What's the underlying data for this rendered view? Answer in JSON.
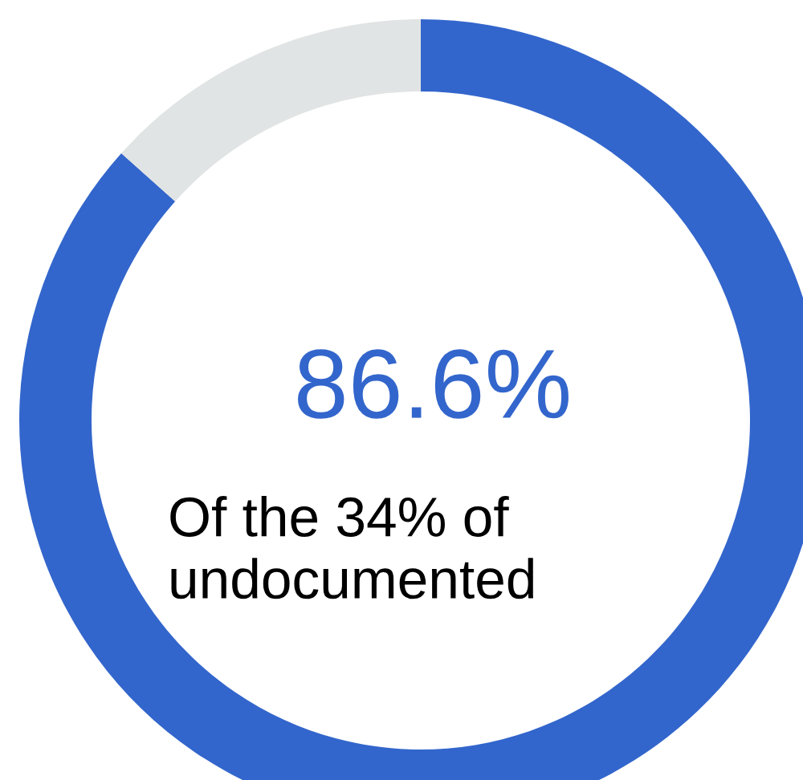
{
  "chart_data": {
    "type": "donut",
    "categories": [
      null,
      null
    ],
    "values": [
      86.6,
      13.4
    ],
    "colors": [
      "#3366cc",
      "#e1e4e4"
    ],
    "value_labels": [
      "86.6%",
      null
    ],
    "annotations": [
      "Of the 34% of\nundocumented"
    ]
  }
}
